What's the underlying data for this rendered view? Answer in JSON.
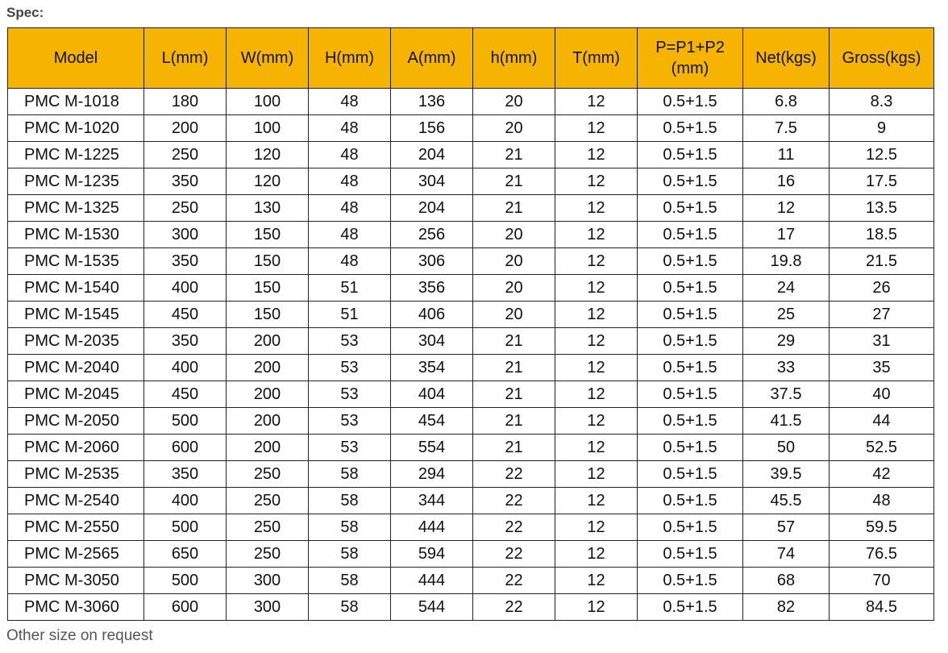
{
  "heading": "Spec:",
  "table": {
    "headers": [
      "Model",
      "L(mm)",
      "W(mm)",
      "H(mm)",
      "A(mm)",
      "h(mm)",
      "T(mm)",
      "P=P1+P2 (mm)",
      "Net(kgs)",
      "Gross(kgs)"
    ],
    "rows": [
      [
        "PMC M-1018",
        "180",
        "100",
        "48",
        "136",
        "20",
        "12",
        "0.5+1.5",
        "6.8",
        "8.3"
      ],
      [
        "PMC M-1020",
        "200",
        "100",
        "48",
        "156",
        "20",
        "12",
        "0.5+1.5",
        "7.5",
        "9"
      ],
      [
        "PMC M-1225",
        "250",
        "120",
        "48",
        "204",
        "21",
        "12",
        "0.5+1.5",
        "11",
        "12.5"
      ],
      [
        "PMC M-1235",
        "350",
        "120",
        "48",
        "304",
        "21",
        "12",
        "0.5+1.5",
        "16",
        "17.5"
      ],
      [
        "PMC M-1325",
        "250",
        "130",
        "48",
        "204",
        "21",
        "12",
        "0.5+1.5",
        "12",
        "13.5"
      ],
      [
        "PMC M-1530",
        "300",
        "150",
        "48",
        "256",
        "20",
        "12",
        "0.5+1.5",
        "17",
        "18.5"
      ],
      [
        "PMC M-1535",
        "350",
        "150",
        "48",
        "306",
        "20",
        "12",
        "0.5+1.5",
        "19.8",
        "21.5"
      ],
      [
        "PMC M-1540",
        "400",
        "150",
        "51",
        "356",
        "20",
        "12",
        "0.5+1.5",
        "24",
        "26"
      ],
      [
        "PMC M-1545",
        "450",
        "150",
        "51",
        "406",
        "20",
        "12",
        "0.5+1.5",
        "25",
        "27"
      ],
      [
        "PMC M-2035",
        "350",
        "200",
        "53",
        "304",
        "21",
        "12",
        "0.5+1.5",
        "29",
        "31"
      ],
      [
        "PMC M-2040",
        "400",
        "200",
        "53",
        "354",
        "21",
        "12",
        "0.5+1.5",
        "33",
        "35"
      ],
      [
        "PMC M-2045",
        "450",
        "200",
        "53",
        "404",
        "21",
        "12",
        "0.5+1.5",
        "37.5",
        "40"
      ],
      [
        "PMC M-2050",
        "500",
        "200",
        "53",
        "454",
        "21",
        "12",
        "0.5+1.5",
        "41.5",
        "44"
      ],
      [
        "PMC M-2060",
        "600",
        "200",
        "53",
        "554",
        "21",
        "12",
        "0.5+1.5",
        "50",
        "52.5"
      ],
      [
        "PMC M-2535",
        "350",
        "250",
        "58",
        "294",
        "22",
        "12",
        "0.5+1.5",
        "39.5",
        "42"
      ],
      [
        "PMC M-2540",
        "400",
        "250",
        "58",
        "344",
        "22",
        "12",
        "0.5+1.5",
        "45.5",
        "48"
      ],
      [
        "PMC M-2550",
        "500",
        "250",
        "58",
        "444",
        "22",
        "12",
        "0.5+1.5",
        "57",
        "59.5"
      ],
      [
        "PMC M-2565",
        "650",
        "250",
        "58",
        "594",
        "22",
        "12",
        "0.5+1.5",
        "74",
        "76.5"
      ],
      [
        "PMC M-3050",
        "500",
        "300",
        "58",
        "444",
        "22",
        "12",
        "0.5+1.5",
        "68",
        "70"
      ],
      [
        "PMC M-3060",
        "600",
        "300",
        "58",
        "544",
        "22",
        "12",
        "0.5+1.5",
        "82",
        "84.5"
      ]
    ]
  },
  "footer_note": "Other size on request",
  "colors": {
    "header_background": "#f6b400",
    "border": "#222222"
  }
}
